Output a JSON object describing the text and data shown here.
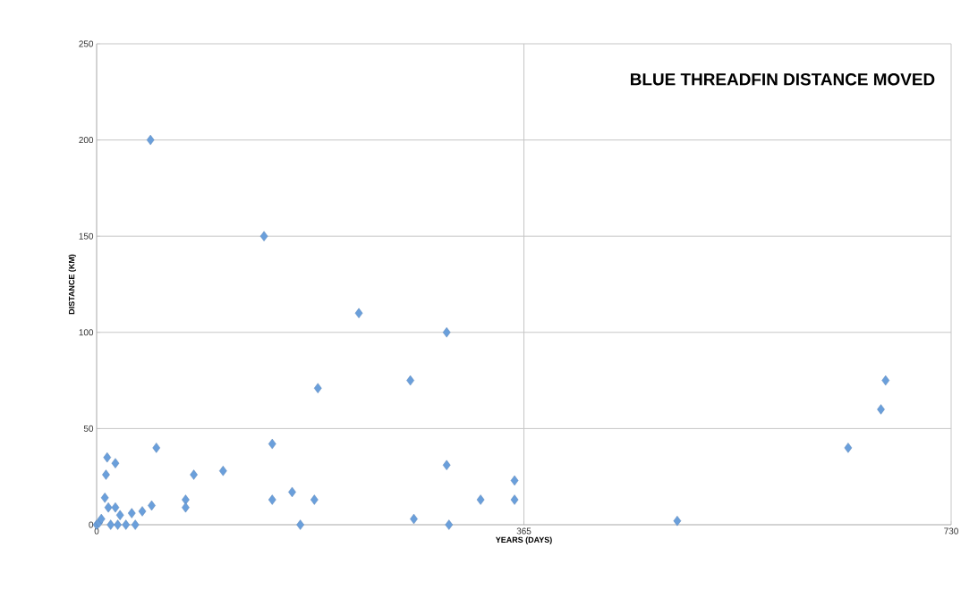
{
  "chart_data": {
    "type": "scatter",
    "title": "BLUE THREADFIN DISTANCE MOVED",
    "xlabel": "YEARS (DAYS)",
    "ylabel": "DISTANCE (KM)",
    "x": [
      46,
      143,
      224,
      299,
      268,
      189,
      674,
      670,
      642,
      496,
      357,
      357,
      328,
      299,
      301,
      271,
      150,
      150,
      167,
      174,
      186,
      108,
      83,
      76,
      76,
      51,
      47,
      9,
      16,
      8,
      7,
      10,
      16,
      20,
      30,
      39,
      0,
      2,
      4,
      12,
      18,
      25,
      33
    ],
    "values": [
      200,
      150,
      110,
      100,
      75,
      71,
      75,
      60,
      40,
      2,
      23,
      13,
      13,
      31,
      0,
      3,
      42,
      13,
      17,
      0,
      13,
      28,
      26,
      13,
      9,
      40,
      10,
      35,
      32,
      26,
      14,
      9,
      9,
      5,
      6,
      7,
      0,
      1,
      3,
      0,
      0,
      0,
      0
    ],
    "color": "#6a9fdb",
    "marker": "diamond",
    "grid": true,
    "xlim": [
      0,
      730
    ],
    "xticks": [
      0,
      365,
      730
    ],
    "ylim": [
      0,
      250
    ],
    "yticks": [
      0,
      50,
      100,
      150,
      200,
      250
    ]
  }
}
